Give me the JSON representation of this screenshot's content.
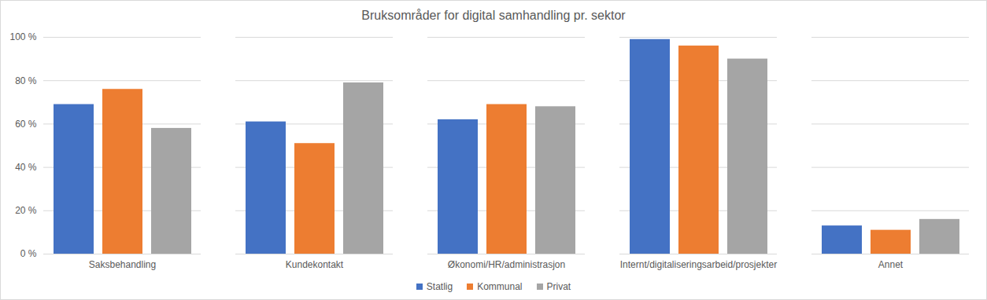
{
  "chart_data": {
    "type": "bar",
    "title": "Bruksområder for digital samhandling pr. sektor",
    "categories": [
      "Saksbehandling",
      "Kundekontakt",
      "Økonomi/HR/administrasjon",
      "Internt/digitaliseringsarbeid/prosjekter",
      "Annet"
    ],
    "series": [
      {
        "name": "Statlig",
        "color": "#4472c4",
        "values": [
          69,
          61,
          62,
          99,
          13
        ]
      },
      {
        "name": "Kommunal",
        "color": "#ed7d31",
        "values": [
          76,
          51,
          69,
          96,
          11
        ]
      },
      {
        "name": "Privat",
        "color": "#a5a5a5",
        "values": [
          58,
          79,
          68,
          90,
          16
        ]
      }
    ],
    "ylim": [
      0,
      100
    ],
    "yticks": [
      {
        "value": 0,
        "label": "0 %"
      },
      {
        "value": 20,
        "label": "20 %"
      },
      {
        "value": 40,
        "label": "40 %"
      },
      {
        "value": 60,
        "label": "60 %"
      },
      {
        "value": 80,
        "label": "80 %"
      },
      {
        "value": 100,
        "label": "100 %"
      }
    ],
    "grid": true,
    "legend": "bottom"
  }
}
